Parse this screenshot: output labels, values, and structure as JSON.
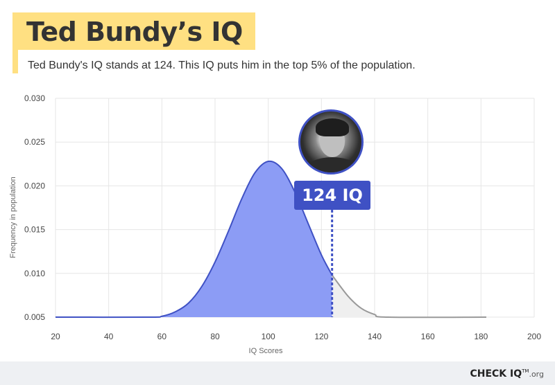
{
  "header": {
    "title": "Ted Bundy’s IQ",
    "subtitle": "Ted Bundy's IQ stands at 124. This IQ puts him in the top 5% of the population."
  },
  "callout": {
    "label": "124 IQ",
    "value": 124
  },
  "avatar": {
    "icon": "portrait-photo"
  },
  "brand": {
    "name": "CHECK IQ",
    "tm": "TM",
    "domain": ".org"
  },
  "colors": {
    "accent": "#3f51c4",
    "fill_main": "#8c9cf5",
    "fill_tail": "#efefef",
    "tail_line": "#999999",
    "title_bg": "#ffe082",
    "grid": "#e6e6e6"
  },
  "chart_data": {
    "type": "area",
    "title": "",
    "xlabel": "IQ Scores",
    "ylabel": "Frequency in population",
    "xlim": [
      20,
      200
    ],
    "ylim": [
      0.005,
      0.03
    ],
    "x_ticks": [
      20,
      40,
      60,
      80,
      100,
      120,
      140,
      160,
      180,
      200
    ],
    "y_ticks": [
      0.005,
      0.01,
      0.015,
      0.02,
      0.025,
      0.03
    ],
    "x_tick_labels": [
      "20",
      "40",
      "60",
      "80",
      "100",
      "120",
      "140",
      "160",
      "180",
      "200"
    ],
    "y_tick_labels": [
      "0.005",
      "0.010",
      "0.015",
      "0.020",
      "0.025",
      "0.030"
    ],
    "grid": true,
    "series": [
      {
        "x": [
          20,
          55,
          60,
          65,
          70,
          75,
          80,
          85,
          90,
          95,
          100,
          105,
          110,
          115,
          120,
          124,
          130,
          135,
          140,
          145,
          182
        ],
        "y": [
          0.005,
          0.005,
          0.0051,
          0.0056,
          0.0066,
          0.0085,
          0.0113,
          0.0148,
          0.0185,
          0.0215,
          0.0228,
          0.022,
          0.0193,
          0.0157,
          0.0121,
          0.0098,
          0.0074,
          0.006,
          0.0053,
          0.005,
          0.005
        ]
      }
    ],
    "highlight_x": 124
  }
}
